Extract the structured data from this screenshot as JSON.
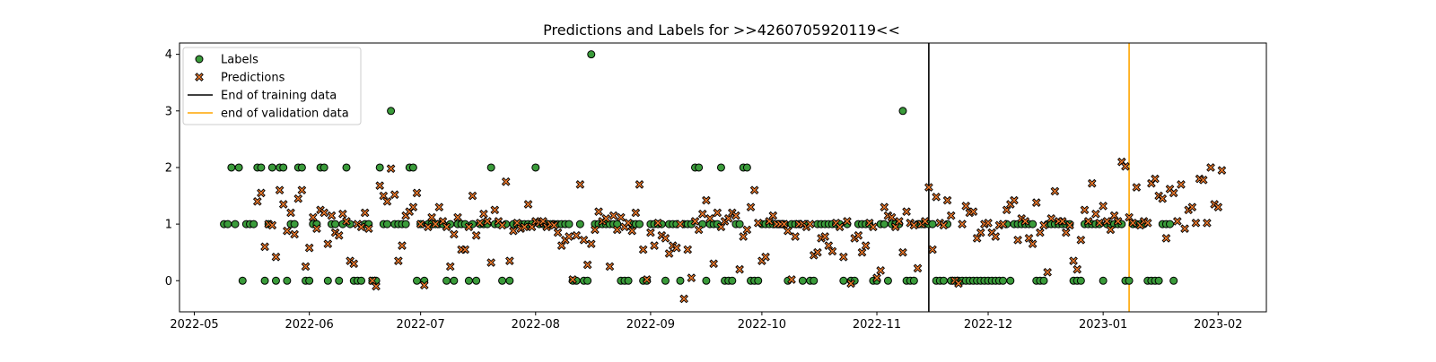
{
  "chart_data": {
    "type": "scatter",
    "title": "Predictions and Labels for >>4260705920119<<",
    "xlabel": "",
    "ylabel": "",
    "xlim": [
      "2022-04-27",
      "2023-02-14"
    ],
    "ylim": [
      -0.55,
      4.2
    ],
    "grid": false,
    "legend_position": "top-left",
    "x_ticks": [
      {
        "date": "2022-05-01",
        "label": "2022-05"
      },
      {
        "date": "2022-06-01",
        "label": "2022-06"
      },
      {
        "date": "2022-07-01",
        "label": "2022-07"
      },
      {
        "date": "2022-08-01",
        "label": "2022-08"
      },
      {
        "date": "2022-09-01",
        "label": "2022-09"
      },
      {
        "date": "2022-10-01",
        "label": "2022-10"
      },
      {
        "date": "2022-11-01",
        "label": "2022-11"
      },
      {
        "date": "2022-12-01",
        "label": "2022-12"
      },
      {
        "date": "2023-01-01",
        "label": "2023-01"
      },
      {
        "date": "2023-02-01",
        "label": "2023-02"
      }
    ],
    "y_ticks": [
      0,
      1,
      2,
      3,
      4
    ],
    "colors": {
      "labels_fill": "#3a9b3a",
      "predictions_fill": "#f07a2b",
      "marker_edge": "#000000",
      "training_line": "#000000",
      "validation_line": "#ffa500"
    },
    "legend": [
      {
        "name": "Labels",
        "marker": "circle"
      },
      {
        "name": "Predictions",
        "marker": "x"
      },
      {
        "name": "End of training data",
        "marker": "line"
      },
      {
        "name": "end of validation data",
        "marker": "line"
      }
    ],
    "vlines": [
      {
        "name": "End of training data",
        "date": "2022-11-15"
      },
      {
        "name": "end of validation data",
        "date": "2023-01-08"
      }
    ],
    "start_date": "2022-05-09",
    "series": [
      {
        "name": "Labels",
        "values": [
          1,
          1,
          2,
          1,
          2,
          0,
          1,
          1,
          1,
          2,
          2,
          0,
          1,
          2,
          0,
          2,
          2,
          0,
          1,
          1,
          2,
          2,
          0,
          0,
          1,
          1,
          2,
          2,
          0,
          1,
          1,
          0,
          1,
          2,
          1,
          0,
          0,
          0,
          1,
          1,
          0,
          0,
          2,
          1,
          1,
          3,
          1,
          1,
          1,
          1,
          2,
          2,
          0,
          1,
          0,
          1,
          1,
          1,
          1,
          1,
          0,
          1,
          0,
          1,
          1,
          1,
          0,
          1,
          0,
          1,
          1,
          1,
          2,
          1,
          1,
          0,
          1,
          0,
          1,
          1,
          1,
          1,
          1,
          1,
          2,
          1,
          1,
          1,
          1,
          1,
          1,
          1,
          1,
          1,
          0,
          0,
          1,
          0,
          0,
          4,
          1,
          1,
          1,
          1,
          1,
          1,
          1,
          0,
          0,
          0,
          1,
          1,
          1,
          0,
          0,
          1,
          1,
          1,
          1,
          0,
          1,
          1,
          1,
          0,
          1,
          1,
          1,
          2,
          2,
          1,
          0,
          1,
          1,
          1,
          2,
          0,
          0,
          0,
          1,
          1,
          2,
          2,
          0,
          0,
          0,
          1,
          1,
          1,
          1,
          1,
          1,
          1,
          0,
          1,
          1,
          1,
          0,
          1,
          0,
          0,
          1,
          1,
          1,
          1,
          1,
          1,
          1,
          0,
          1,
          0,
          0,
          1,
          1,
          1,
          1,
          0,
          0,
          1,
          1,
          0,
          1,
          1,
          1,
          3,
          0,
          0,
          0,
          1,
          1,
          1,
          1,
          1,
          0,
          0,
          0,
          1,
          0,
          0,
          0,
          0,
          0,
          0,
          0,
          0,
          0,
          0,
          0,
          0,
          0,
          0,
          0,
          1,
          0,
          1,
          1,
          1,
          1,
          1,
          1,
          0,
          0,
          0,
          1,
          1,
          1,
          1,
          1,
          1,
          1,
          0,
          0,
          0,
          1,
          1,
          1,
          1,
          1,
          0,
          1,
          1,
          1,
          1,
          1,
          0,
          0,
          1,
          1,
          1,
          1,
          0,
          0,
          0,
          0,
          1,
          1,
          1,
          0
        ]
      },
      {
        "name": "Predictions",
        "values": [
          null,
          null,
          null,
          null,
          null,
          null,
          null,
          null,
          null,
          1.4,
          1.55,
          0.6,
          1,
          0.98,
          0.42,
          1.6,
          1.35,
          0.88,
          1.2,
          0.82,
          1.45,
          1.6,
          0.25,
          0.58,
          1.12,
          0.92,
          1.25,
          1.2,
          0.65,
          1.15,
          0.85,
          0.8,
          1.18,
          1.05,
          0.35,
          0.3,
          1,
          0.95,
          1.2,
          0.92,
          0,
          -0.1,
          1.68,
          1.5,
          1.4,
          1.98,
          1.52,
          0.35,
          0.62,
          1.15,
          1.22,
          1.3,
          1.55,
          1,
          -0.08,
          0.95,
          1.12,
          1,
          1.3,
          1.05,
          0.95,
          0.25,
          0.82,
          1.12,
          0.55,
          0.55,
          0.95,
          1.5,
          0.8,
          1.02,
          1.18,
          1.05,
          0.32,
          1.25,
          1.05,
          0.98,
          1.75,
          0.35,
          0.88,
          1.02,
          0.92,
          0.95,
          1.35,
          0.95,
          1.05,
          1.02,
          1.05,
          0.95,
          1,
          0.98,
          0.85,
          0.62,
          0.72,
          0.78,
          0.02,
          0.8,
          1.7,
          0.72,
          0.28,
          0.65,
          0.9,
          1.22,
          1.05,
          1.1,
          0.25,
          1.15,
          0.9,
          1.12,
          0.95,
          1.02,
          0.88,
          1.2,
          1.7,
          0.55,
          0.02,
          0.85,
          0.62,
          1.02,
          0.8,
          0.75,
          0.48,
          0.62,
          0.58,
          1,
          -0.32,
          0.55,
          0.05,
          1.05,
          0.9,
          1.18,
          1.42,
          1.1,
          0.3,
          1.2,
          0.95,
          1.05,
          1.1,
          1.2,
          1.15,
          0.2,
          0.78,
          0.9,
          1.3,
          1.6,
          1.02,
          0.35,
          0.42,
          1.05,
          1.15,
          1,
          1,
          1,
          0.88,
          0.02,
          0.78,
          1,
          1,
          0.95,
          1,
          0.45,
          0.5,
          0.75,
          0.78,
          0.62,
          0.52,
          1.02,
          0.95,
          0.42,
          1.05,
          -0.05,
          0.75,
          0.8,
          0.5,
          0.62,
          1.02,
          0.95,
          0.05,
          0.18,
          1.3,
          1.15,
          1.12,
          0.95,
          1.05,
          0.5,
          1.22,
          1.02,
          0.98,
          0.22,
          1,
          1.05,
          1.65,
          0.55,
          1.48,
          1.02,
          0.98,
          1.42,
          1.15,
          0,
          -0.05,
          1,
          1.32,
          1.2,
          1.22,
          0.75,
          0.85,
          1,
          1.02,
          0.85,
          0.78,
          0.98,
          1,
          1.25,
          1.35,
          1.42,
          0.72,
          1.1,
          1.05,
          0.75,
          0.65,
          1.38,
          0.85,
          0.98,
          0.15,
          1.1,
          1.58,
          1.05,
          1.05,
          0.85,
          0.98,
          0.35,
          0.2,
          0.72,
          1.25,
          1.05,
          1.72,
          1.18,
          1.02,
          1.32,
          1.05,
          0.9,
          1.15,
          1.05,
          2.1,
          2.02,
          1.12,
          1.02,
          1.65,
          0.98,
          1.05,
          1.02,
          1.72,
          1.8,
          1.5,
          1.45,
          0.75,
          1.62,
          1.55,
          1.05,
          1.7,
          0.92,
          1.25,
          1.3,
          1.02,
          1.8,
          1.78,
          1.02,
          2,
          1.35,
          1.3,
          1.95
        ]
      }
    ]
  }
}
